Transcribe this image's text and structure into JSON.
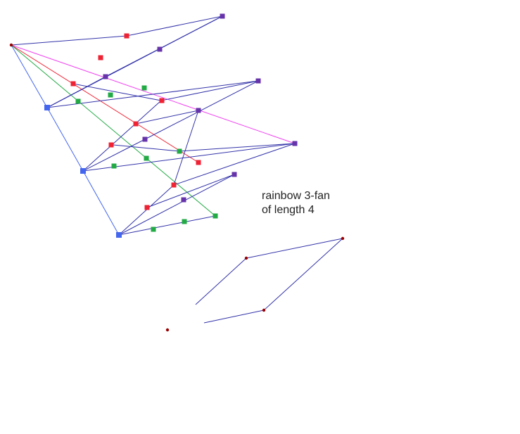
{
  "caption": {
    "line1": "rainbow 3-fan",
    "line2": "of length 4"
  },
  "colors": {
    "blue": "#4466ee",
    "red": "#ee2233",
    "green": "#22aa44",
    "purple": "#6633aa",
    "magenta": "#ee44ee",
    "navy": "#3333aa",
    "point": "#990000"
  },
  "icons": {
    "vertex": "square-node",
    "apex": "dot-node"
  }
}
